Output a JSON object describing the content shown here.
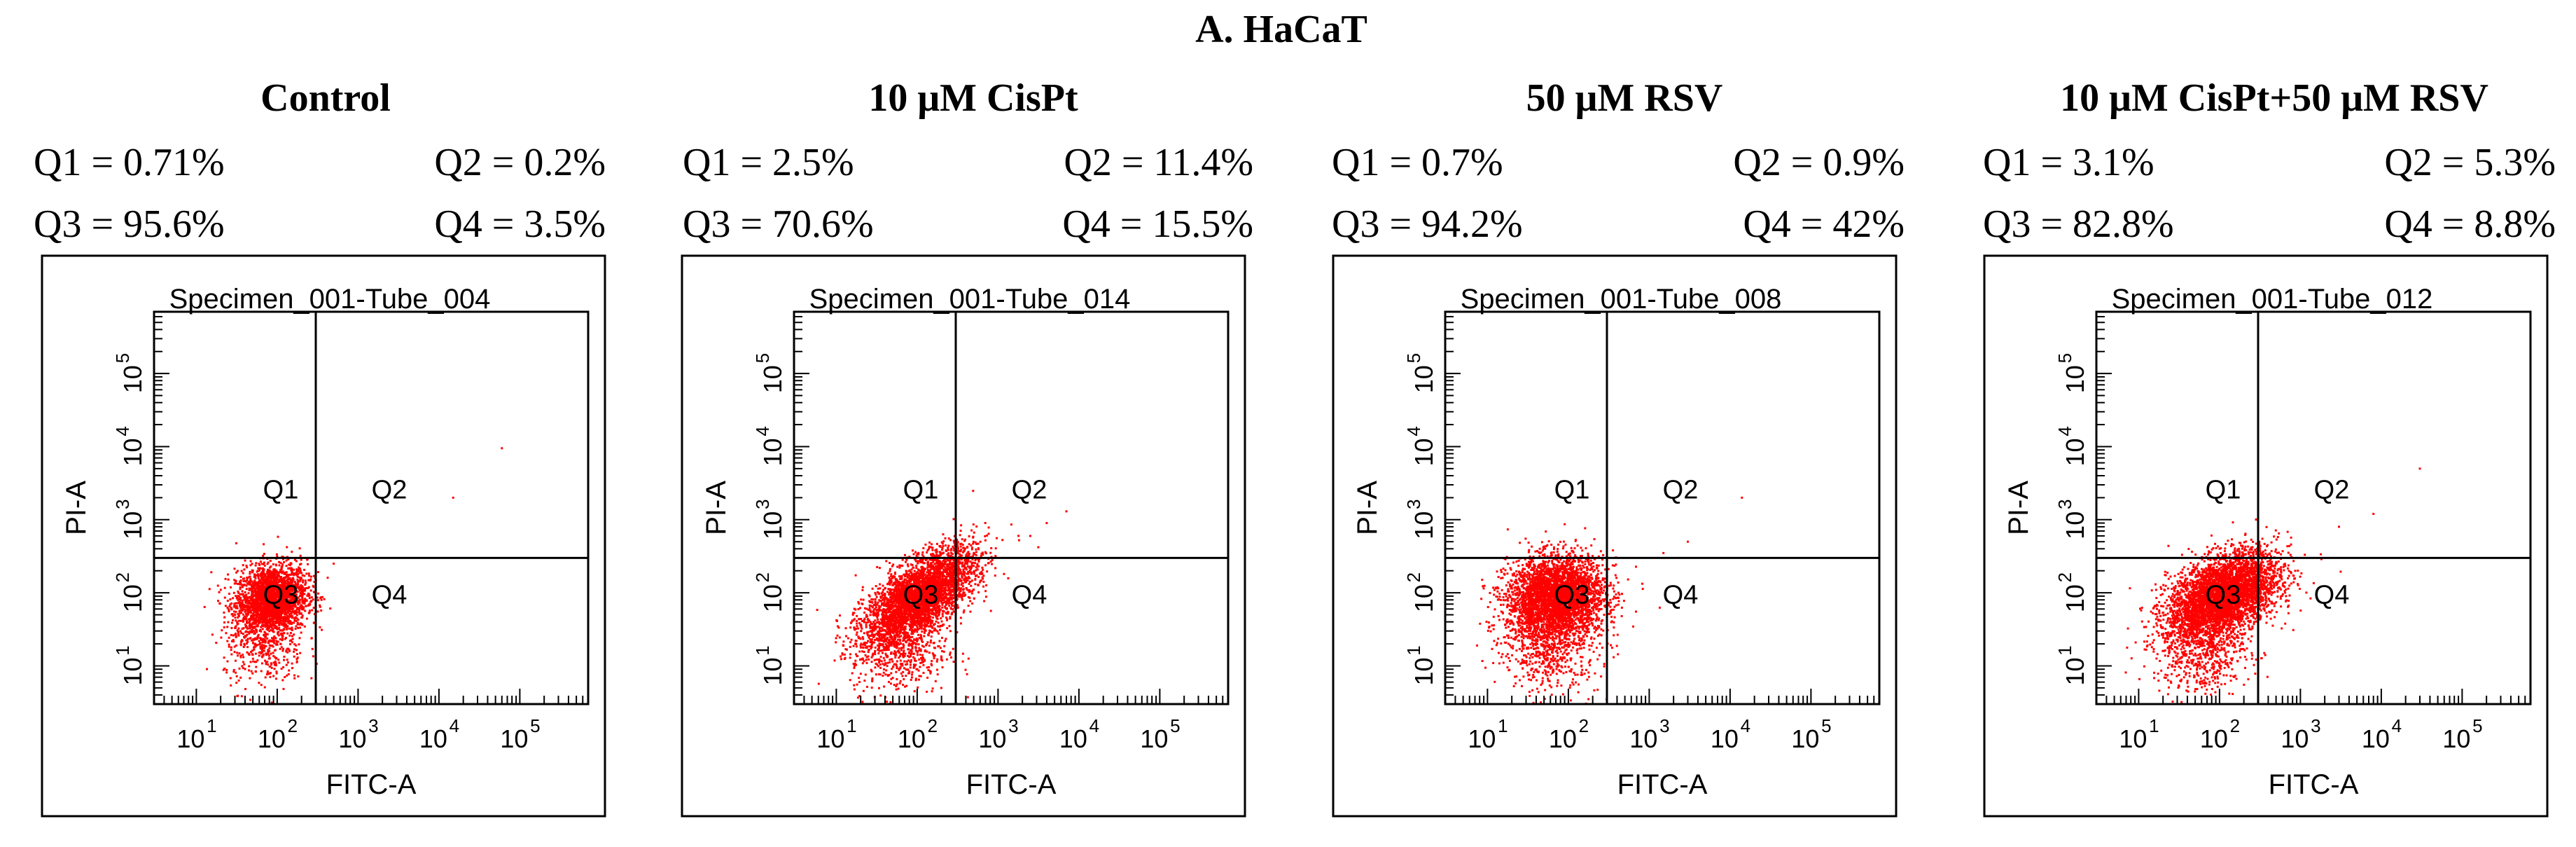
{
  "figure_title": "A. HaCaT",
  "chart_data": [
    {
      "type": "scatter",
      "panel_title": "Control",
      "specimen": "Specimen_001-Tube_004",
      "xlabel": "FITC-A",
      "ylabel": "PI-A",
      "x_scale": "log",
      "y_scale": "log",
      "xlim": [
        3,
        700000
      ],
      "ylim": [
        3,
        700000
      ],
      "x_ticks": [
        "10",
        "10",
        "10",
        "10",
        "10"
      ],
      "x_tick_exps": [
        "1",
        "2",
        "3",
        "4",
        "5"
      ],
      "y_ticks": [
        "10",
        "10",
        "10",
        "10",
        "10"
      ],
      "y_tick_exps": [
        "1",
        "2",
        "3",
        "4",
        "5"
      ],
      "gate": {
        "x": 300,
        "y": 300
      },
      "quadrant_labels": [
        "Q1",
        "Q2",
        "Q3",
        "Q4"
      ],
      "stats": {
        "q1": "Q1 = 0.71%",
        "q2": "Q2 = 0.2%",
        "q3": "Q3 = 95.6%",
        "q4": "Q4 = 3.5%"
      },
      "color": "#ff0000",
      "clusters": [
        {
          "cx": 85,
          "cy": 80,
          "sx": 0.22,
          "sy": 0.24,
          "n": 2600,
          "rho": 0.15
        },
        {
          "cx": 70,
          "cy": 15,
          "sx": 0.25,
          "sy": 0.25,
          "n": 300,
          "rho": 0.0
        }
      ],
      "outliers": [
        [
          15000,
          2000
        ],
        [
          60000,
          9500
        ],
        [
          500,
          250
        ]
      ]
    },
    {
      "type": "scatter",
      "panel_title": "10 μM CisPt",
      "specimen": "Specimen_001-Tube_014",
      "xlabel": "FITC-A",
      "ylabel": "PI-A",
      "x_scale": "log",
      "y_scale": "log",
      "xlim": [
        3,
        700000
      ],
      "ylim": [
        3,
        700000
      ],
      "x_ticks": [
        "10",
        "10",
        "10",
        "10",
        "10"
      ],
      "x_tick_exps": [
        "1",
        "2",
        "3",
        "4",
        "5"
      ],
      "y_ticks": [
        "10",
        "10",
        "10",
        "10",
        "10"
      ],
      "y_tick_exps": [
        "1",
        "2",
        "3",
        "4",
        "5"
      ],
      "gate": {
        "x": 300,
        "y": 300
      },
      "quadrant_labels": [
        "Q1",
        "Q2",
        "Q3",
        "Q4"
      ],
      "stats": {
        "q1": "Q1 = 2.5%",
        "q2": "Q2 = 11.4%",
        "q3": "Q3 = 70.6%",
        "q4": "Q4 = 15.5%"
      },
      "color": "#ff0000",
      "clusters": [
        {
          "cx": 110,
          "cy": 90,
          "sx": 0.34,
          "sy": 0.32,
          "n": 3800,
          "rho": 0.65
        },
        {
          "cx": 60,
          "cy": 15,
          "sx": 0.3,
          "sy": 0.28,
          "n": 500,
          "rho": 0.0
        }
      ],
      "outliers": [
        [
          4000,
          900
        ],
        [
          7000,
          1300
        ],
        [
          2500,
          600
        ]
      ]
    },
    {
      "type": "scatter",
      "panel_title": "50 μM RSV",
      "specimen": "Specimen_001-Tube_008",
      "xlabel": "FITC-A",
      "ylabel": "PI-A",
      "x_scale": "log",
      "y_scale": "log",
      "xlim": [
        3,
        700000
      ],
      "ylim": [
        3,
        700000
      ],
      "x_ticks": [
        "10",
        "10",
        "10",
        "10",
        "10"
      ],
      "x_tick_exps": [
        "1",
        "2",
        "3",
        "4",
        "5"
      ],
      "y_ticks": [
        "10",
        "10",
        "10",
        "10",
        "10"
      ],
      "y_tick_exps": [
        "1",
        "2",
        "3",
        "4",
        "5"
      ],
      "gate": {
        "x": 300,
        "y": 300
      },
      "quadrant_labels": [
        "Q1",
        "Q2",
        "Q3",
        "Q4"
      ],
      "stats": {
        "q1": "Q1 = 0.7%",
        "q2": "Q2 = 0.9%",
        "q3": "Q3 = 94.2%",
        "q4": "Q4 = 42%"
      },
      "color": "#ff0000",
      "clusters": [
        {
          "cx": 70,
          "cy": 85,
          "sx": 0.3,
          "sy": 0.28,
          "n": 3600,
          "rho": 0.1
        },
        {
          "cx": 60,
          "cy": 15,
          "sx": 0.3,
          "sy": 0.28,
          "n": 500,
          "rho": 0.0
        }
      ],
      "outliers": [
        [
          14000,
          2000
        ],
        [
          3000,
          500
        ],
        [
          1500,
          350
        ]
      ]
    },
    {
      "type": "scatter",
      "panel_title": "10 μM CisPt+50 μM RSV",
      "specimen": "Specimen_001-Tube_012",
      "xlabel": "FITC-A",
      "ylabel": "PI-A",
      "x_scale": "log",
      "y_scale": "log",
      "xlim": [
        3,
        700000
      ],
      "ylim": [
        3,
        700000
      ],
      "x_ticks": [
        "10",
        "10",
        "10",
        "10",
        "10"
      ],
      "x_tick_exps": [
        "1",
        "2",
        "3",
        "4",
        "5"
      ],
      "y_ticks": [
        "10",
        "10",
        "10",
        "10",
        "10"
      ],
      "y_tick_exps": [
        "1",
        "2",
        "3",
        "4",
        "5"
      ],
      "gate": {
        "x": 300,
        "y": 300
      },
      "quadrant_labels": [
        "Q1",
        "Q2",
        "Q3",
        "Q4"
      ],
      "stats": {
        "q1": "Q1 = 3.1%",
        "q2": "Q2 = 5.3%",
        "q3": "Q3 = 82.8%",
        "q4": "Q4 = 8.8%"
      },
      "color": "#ff0000",
      "clusters": [
        {
          "cx": 110,
          "cy": 90,
          "sx": 0.34,
          "sy": 0.3,
          "n": 4200,
          "rho": 0.45
        },
        {
          "cx": 60,
          "cy": 15,
          "sx": 0.3,
          "sy": 0.28,
          "n": 500,
          "rho": 0.0
        }
      ],
      "outliers": [
        [
          30000,
          5000
        ],
        [
          8000,
          1200
        ],
        [
          3000,
          800
        ]
      ]
    }
  ]
}
